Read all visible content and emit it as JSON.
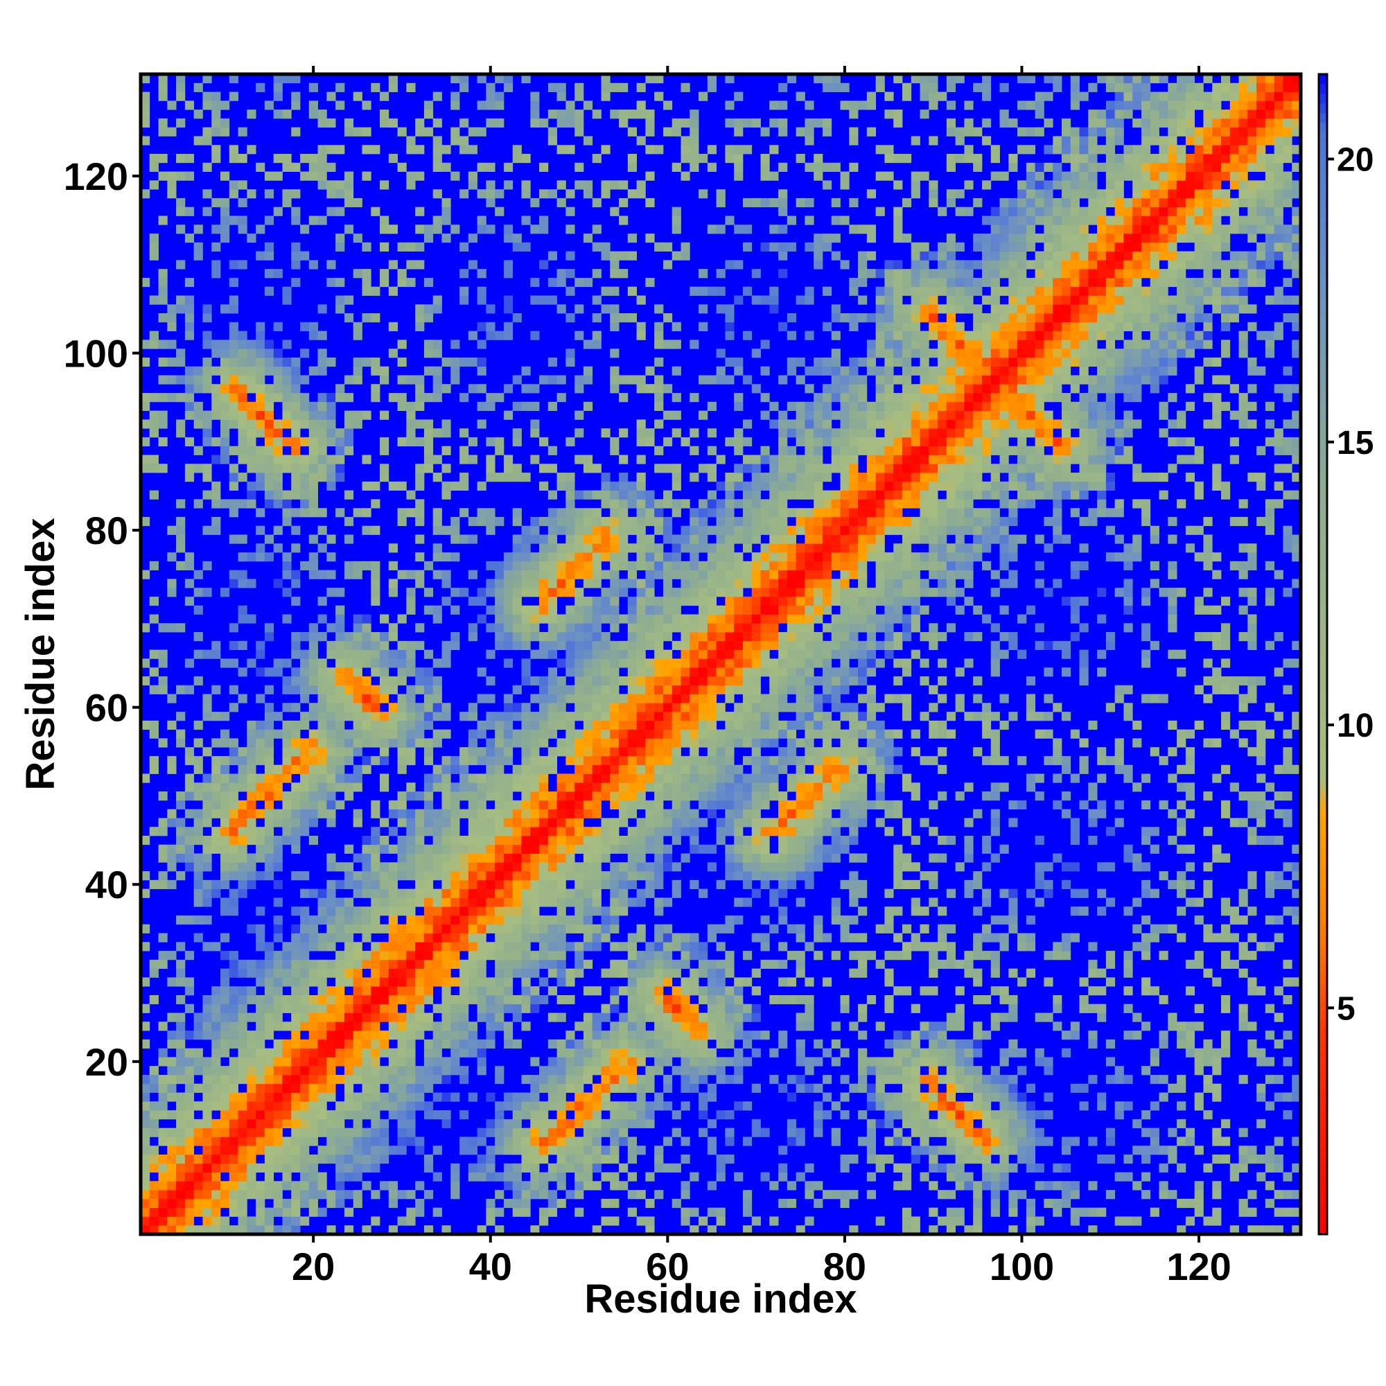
{
  "chart_data": {
    "type": "heatmap",
    "title": "",
    "xlabel": "Residue index",
    "ylabel": "Residue index",
    "xlim": [
      1,
      131
    ],
    "ylim": [
      1,
      131
    ],
    "x_ticks": [
      20,
      40,
      60,
      80,
      100,
      120
    ],
    "y_ticks": [
      20,
      40,
      60,
      80,
      100,
      120
    ],
    "x_tick_labels": [
      "20",
      "40",
      "60",
      "80",
      "100",
      "120"
    ],
    "y_tick_labels": [
      "20",
      "40",
      "60",
      "80",
      "100",
      "120"
    ],
    "n_residues": 131,
    "value_description": "distance between residue pairs (colour scale 1 to 21; values above ~21 shown in blue)",
    "colorbar": {
      "range": [
        1,
        21.5
      ],
      "ticks": [
        5,
        10,
        15,
        20
      ],
      "tick_labels": [
        "5",
        "10",
        "15",
        "20"
      ],
      "position": "right",
      "stops": [
        {
          "value": 1,
          "color": "#ff0000"
        },
        {
          "value": 4.5,
          "color": "#ff3300"
        },
        {
          "value": 6.5,
          "color": "#ff8000"
        },
        {
          "value": 8.5,
          "color": "#ffa500"
        },
        {
          "value": 9,
          "color": "#a8bd80"
        },
        {
          "value": 14,
          "color": "#8fae8f"
        },
        {
          "value": 18,
          "color": "#6b8fc4"
        },
        {
          "value": 20.5,
          "color": "#4f74d8"
        },
        {
          "value": 21.5,
          "color": "#0000ff"
        }
      ]
    },
    "colors": {
      "background": "#0000ff",
      "diagonal": "#ff0000",
      "close_contact": "#ff8000",
      "contact": "#ffa500",
      "mid_range": "#9cb88a",
      "far_range": "#6b8fc4"
    },
    "contact_features": [
      {
        "x_range": [
          12,
          17
        ],
        "y_range": [
          89,
          96
        ],
        "min_value": 6,
        "orientation": "anti"
      },
      {
        "x_range": [
          10,
          20
        ],
        "y_range": [
          45,
          56
        ],
        "min_value": 6,
        "orientation": "parallel"
      },
      {
        "x_range": [
          24,
          27
        ],
        "y_range": [
          60,
          63
        ],
        "min_value": 6,
        "orientation": "anti"
      },
      {
        "x_range": [
          45,
          56
        ],
        "y_range": [
          11,
          19
        ],
        "min_value": 6,
        "orientation": "parallel"
      },
      {
        "x_range": [
          46,
          53
        ],
        "y_range": [
          71,
          80
        ],
        "min_value": 6,
        "orientation": "parallel"
      },
      {
        "x_range": [
          60,
          63
        ],
        "y_range": [
          23,
          27
        ],
        "min_value": 6,
        "orientation": "anti"
      },
      {
        "x_range": [
          70,
          78
        ],
        "y_range": [
          47,
          53
        ],
        "min_value": 6,
        "orientation": "parallel"
      },
      {
        "x_range": [
          89,
          96
        ],
        "y_range": [
          12,
          17
        ],
        "min_value": 6,
        "orientation": "anti"
      },
      {
        "x_range": [
          89,
          97
        ],
        "y_range": [
          97,
          105
        ],
        "min_value": 6,
        "orientation": "anti"
      },
      {
        "x_range": [
          97,
          105
        ],
        "y_range": [
          89,
          97
        ],
        "min_value": 6,
        "orientation": "anti"
      }
    ],
    "grid": false,
    "legend": "none"
  }
}
